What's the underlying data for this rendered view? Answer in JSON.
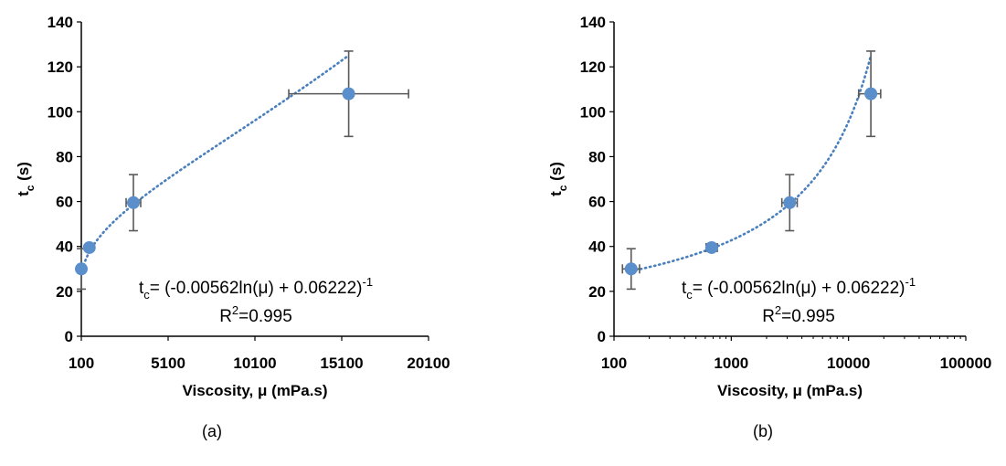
{
  "chart_data": [
    {
      "id": "a",
      "type": "scatter",
      "caption": "(a)",
      "xlabel": "Viscosity, μ (mPa.s)",
      "ylabel_main": "t",
      "ylabel_sub": "c",
      "ylabel_tail": " (s)",
      "xscale": "linear",
      "xlim": [
        100,
        20100
      ],
      "ylim": [
        0,
        140
      ],
      "xticks": [
        100,
        5100,
        10100,
        15100,
        20100
      ],
      "yticks": [
        0,
        20,
        40,
        60,
        80,
        100,
        120,
        140
      ],
      "grid": false,
      "marker_color": "#5b8fcb",
      "errorbar_color": "#595959",
      "trendline_color": "#4a7fbe",
      "points": [
        {
          "x": 100,
          "y": 30,
          "xerr": 0,
          "yerr": 9
        },
        {
          "x": 560,
          "y": 39.5,
          "xerr": 0,
          "yerr": 0
        },
        {
          "x": 3100,
          "y": 59.5,
          "xerr": 420,
          "yerr": 12.5
        },
        {
          "x": 15500,
          "y": 108,
          "xerr": 3450,
          "yerr": 19
        }
      ],
      "trendline": {
        "a": -0.00562,
        "b": 0.06222
      },
      "annotation": {
        "eq_main": "t",
        "eq_sub": "c",
        "eq_rest": "= (-0.00562ln(μ) + 0.06222)",
        "eq_sup": "-1",
        "r2_main": "R",
        "r2_sup": "2",
        "r2_rest": "=0.995"
      }
    },
    {
      "id": "b",
      "type": "scatter",
      "caption": "(b)",
      "xlabel": "Viscosity, μ (mPa.s)",
      "ylabel_main": "t",
      "ylabel_sub": "c",
      "ylabel_tail": " (s)",
      "xscale": "log",
      "xlim": [
        100,
        100000
      ],
      "ylim": [
        0,
        140
      ],
      "xticks": [
        100,
        1000,
        10000,
        100000
      ],
      "yticks": [
        0,
        20,
        40,
        60,
        80,
        100,
        120,
        140
      ],
      "grid": false,
      "marker_color": "#5b8fcb",
      "errorbar_color": "#595959",
      "trendline_color": "#4a7fbe",
      "points": [
        {
          "x": 140,
          "y": 30,
          "xlo": 118,
          "xhi": 165,
          "yerr": 9
        },
        {
          "x": 680,
          "y": 39.5,
          "xlo": 610,
          "xhi": 760,
          "yerr": 0
        },
        {
          "x": 3150,
          "y": 59.5,
          "xlo": 2700,
          "xhi": 3650,
          "yerr": 12.5
        },
        {
          "x": 15500,
          "y": 108,
          "xlo": 12200,
          "xhi": 18800,
          "yerr": 19
        }
      ],
      "trendline": {
        "a": -0.00562,
        "b": 0.06222
      },
      "annotation": {
        "eq_main": "t",
        "eq_sub": "c",
        "eq_rest": "= (-0.00562ln(μ) + 0.06222)",
        "eq_sup": "-1",
        "r2_main": "R",
        "r2_sup": "2",
        "r2_rest": "=0.995"
      }
    }
  ]
}
